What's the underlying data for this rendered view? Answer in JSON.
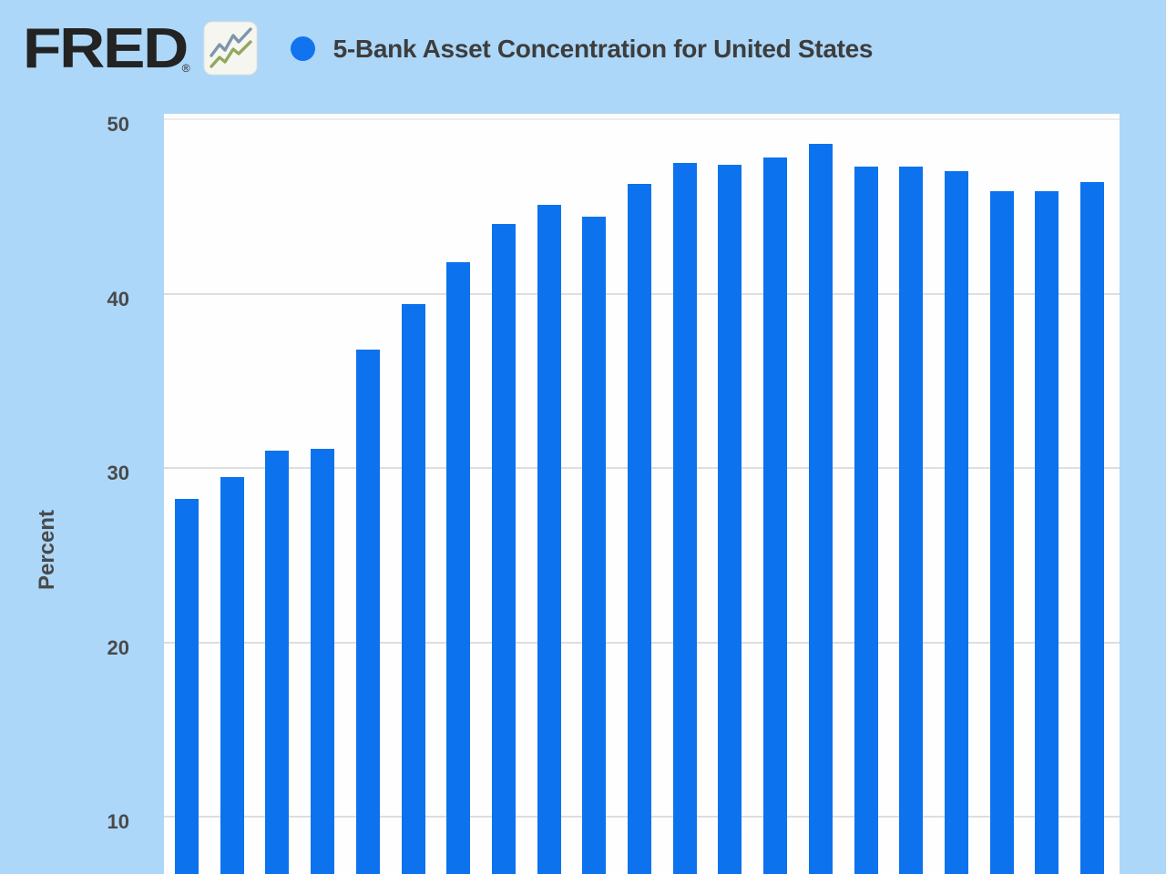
{
  "header": {
    "logo_text": "FRED",
    "registered_mark": "®",
    "series_title": "5-Bank Asset Concentration for United States"
  },
  "colors": {
    "page_background": "#acd7f9",
    "plot_background": "#fefefe",
    "bar_blue": "#0d72ee",
    "legend_dot_blue": "#1273ef",
    "gridline_gray": "#dedede",
    "top_gridline_gray": "#ececec",
    "title_text": "#3d3d3d",
    "axis_text": "#4a4a4a",
    "logo_black": "#232323",
    "icon_line_blue": "#7d96ab",
    "icon_line_green": "#93a75d"
  },
  "chart_data": {
    "type": "bar",
    "title": "5-Bank Asset Concentration for United States",
    "xlabel": "",
    "ylabel": "Percent",
    "yticks": [
      10,
      20,
      30,
      40,
      50
    ],
    "ylim_visible": [
      6.7,
      50.3
    ],
    "grid": true,
    "x_axis_labels_visible": false,
    "legend_position": "top-left",
    "legend_marker": "filled-circle",
    "bar_color": "#0d72ee",
    "values": [
      28.2,
      29.5,
      31.0,
      31.1,
      36.8,
      39.4,
      41.8,
      44.0,
      45.1,
      44.4,
      46.3,
      47.5,
      47.4,
      47.8,
      48.6,
      47.3,
      47.3,
      47.0,
      45.9,
      45.9,
      46.4
    ]
  }
}
